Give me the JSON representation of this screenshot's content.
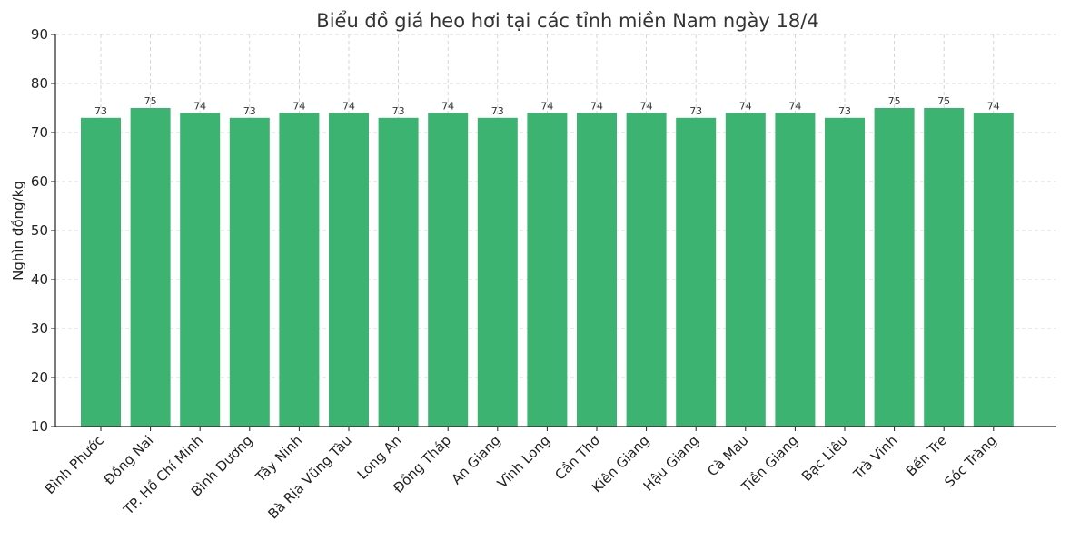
{
  "chart_data": {
    "type": "bar",
    "title": "Biểu đồ giá heo hơi tại các tỉnh miền Nam ngày 18/4",
    "xlabel": "",
    "ylabel": "Nghìn đồng/kg",
    "ylim": [
      10,
      90
    ],
    "yticks": [
      10,
      20,
      30,
      40,
      50,
      60,
      70,
      80,
      90
    ],
    "grid": true,
    "bar_color": "#3cb371",
    "categories": [
      "Bình Phước",
      "Đồng Nai",
      "TP. Hồ Chí Minh",
      "Bình Dương",
      "Tây Ninh",
      "Bà Rịa Vũng Tàu",
      "Long An",
      "Đồng Tháp",
      "An Giang",
      "Vĩnh Long",
      "Cần Thơ",
      "Kiên Giang",
      "Hậu Giang",
      "Cà Mau",
      "Tiền Giang",
      "Bạc Liêu",
      "Trà Vinh",
      "Bến Tre",
      "Sóc Trăng"
    ],
    "values": [
      73,
      75,
      74,
      73,
      74,
      74,
      73,
      74,
      73,
      74,
      74,
      74,
      73,
      74,
      74,
      73,
      75,
      75,
      74
    ]
  }
}
